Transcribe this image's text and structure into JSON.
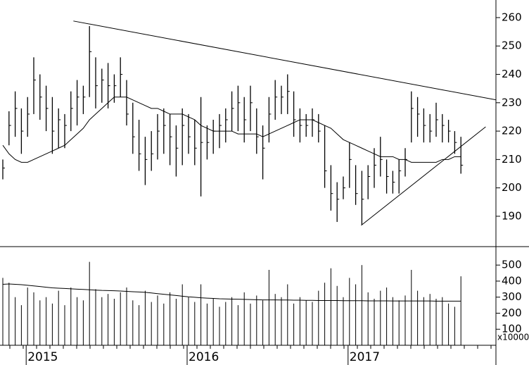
{
  "chart_data": [
    {
      "type": "ohlc",
      "categories": [
        null,
        null,
        null,
        null,
        "2015",
        null,
        null,
        null,
        null,
        null,
        null,
        null,
        null,
        null,
        null,
        null,
        null,
        null,
        null,
        null,
        null,
        null,
        null,
        null,
        null,
        null,
        null,
        null,
        null,
        null,
        "2016",
        null,
        null,
        null,
        null,
        null,
        null,
        null,
        null,
        null,
        null,
        null,
        null,
        null,
        null,
        null,
        null,
        null,
        null,
        null,
        null,
        null,
        null,
        null,
        null,
        null,
        "2017",
        null,
        null,
        null,
        null,
        null,
        null,
        null,
        null,
        null,
        null,
        null,
        null,
        null,
        null,
        null,
        null,
        null,
        null
      ],
      "series": [
        {
          "name": "high",
          "values": [
            210,
            227,
            234,
            228,
            232,
            246,
            240,
            236,
            232,
            228,
            226,
            234,
            238,
            236,
            257,
            246,
            242,
            244,
            240,
            246,
            238,
            230,
            224,
            218,
            220,
            226,
            228,
            226,
            222,
            228,
            226,
            224,
            232,
            222,
            224,
            226,
            228,
            234,
            236,
            232,
            236,
            228,
            222,
            232,
            238,
            236,
            240,
            234,
            228,
            226,
            228,
            226,
            222,
            208,
            202,
            204,
            216,
            208,
            206,
            208,
            214,
            218,
            210,
            206,
            210,
            214,
            234,
            232,
            228,
            226,
            230,
            226,
            224,
            220,
            218
          ]
        },
        {
          "name": "low",
          "values": [
            203,
            215,
            218,
            212,
            218,
            226,
            224,
            220,
            212,
            214,
            214,
            220,
            222,
            226,
            232,
            228,
            230,
            228,
            230,
            232,
            222,
            212,
            206,
            201,
            206,
            210,
            212,
            208,
            204,
            208,
            212,
            208,
            197,
            210,
            212,
            214,
            216,
            220,
            220,
            216,
            220,
            212,
            203,
            216,
            224,
            226,
            226,
            218,
            216,
            218,
            218,
            216,
            200,
            192,
            188,
            196,
            200,
            194,
            187,
            196,
            200,
            204,
            198,
            198,
            198,
            204,
            216,
            218,
            216,
            216,
            218,
            216,
            216,
            212,
            205
          ]
        },
        {
          "name": "close",
          "values": [
            207,
            222,
            228,
            220,
            226,
            238,
            232,
            228,
            220,
            224,
            222,
            228,
            232,
            232,
            248,
            236,
            238,
            236,
            236,
            240,
            226,
            218,
            212,
            210,
            212,
            220,
            222,
            218,
            214,
            222,
            218,
            214,
            216,
            216,
            220,
            222,
            224,
            228,
            230,
            224,
            230,
            218,
            214,
            226,
            232,
            232,
            234,
            224,
            222,
            222,
            224,
            220,
            206,
            198,
            196,
            200,
            210,
            198,
            196,
            204,
            208,
            210,
            204,
            202,
            206,
            210,
            228,
            226,
            222,
            220,
            224,
            222,
            220,
            216,
            208
          ]
        },
        {
          "name": "average",
          "values": [
            215,
            212,
            210,
            209,
            209,
            210,
            211,
            212,
            213,
            214,
            215,
            217,
            219,
            221,
            224,
            226,
            228,
            230,
            232,
            232,
            232,
            231,
            230,
            229,
            228,
            228,
            227,
            226,
            226,
            226,
            225,
            224,
            222,
            221,
            220,
            220,
            220,
            220,
            219,
            219,
            219,
            219,
            218,
            219,
            220,
            221,
            222,
            223,
            224,
            224,
            224,
            223,
            222,
            221,
            219,
            217,
            216,
            215,
            214,
            213,
            212,
            211,
            211,
            211,
            210,
            210,
            209,
            209,
            209,
            209,
            209,
            210,
            210,
            211,
            211
          ]
        }
      ],
      "trendlines": [
        {
          "start_index": 11.4,
          "start_value": 258.8,
          "end_index": 79.7,
          "end_value": 231
        },
        {
          "start_index": 57.9,
          "start_value": 186.8,
          "end_index": 78,
          "end_value": 221.5
        }
      ],
      "color": "#000000",
      "ylim": [
        179.3,
        266.2
      ],
      "yticks": [
        190,
        200,
        210,
        220,
        230,
        240,
        250,
        260
      ]
    },
    {
      "type": "volume",
      "unit": "x10000",
      "series": [
        {
          "name": "volume",
          "values": [
            420,
            390,
            300,
            250,
            360,
            330,
            280,
            300,
            260,
            340,
            250,
            360,
            300,
            280,
            520,
            350,
            300,
            320,
            290,
            330,
            360,
            280,
            250,
            340,
            270,
            310,
            260,
            330,
            290,
            380,
            300,
            270,
            380,
            260,
            290,
            240,
            270,
            300,
            250,
            330,
            260,
            310,
            280,
            470,
            320,
            300,
            380,
            260,
            300,
            280,
            270,
            340,
            390,
            480,
            370,
            300,
            420,
            380,
            500,
            330,
            290,
            340,
            360,
            300,
            280,
            310,
            470,
            340,
            300,
            320,
            290,
            300,
            260,
            240,
            430
          ]
        },
        {
          "name": "volume-average",
          "values": [
            380,
            382,
            380,
            378,
            374,
            370,
            366,
            362,
            358,
            356,
            354,
            352,
            350,
            348,
            346,
            344,
            342,
            341,
            340,
            338,
            336,
            334,
            332,
            330,
            326,
            322,
            318,
            314,
            310,
            306,
            302,
            299,
            296,
            294,
            292,
            290,
            289,
            288,
            287,
            286,
            285,
            284,
            283,
            283,
            283,
            282,
            282,
            281,
            281,
            280,
            280,
            279,
            279,
            279,
            279,
            278,
            278,
            278,
            278,
            277,
            277,
            277,
            277,
            276,
            276,
            276,
            276,
            276,
            276,
            276,
            275,
            275,
            275,
            275,
            275
          ]
        }
      ],
      "color": "#000000",
      "ylim": [
        0,
        615
      ],
      "yticks": [
        100,
        200,
        300,
        400,
        500
      ]
    }
  ]
}
